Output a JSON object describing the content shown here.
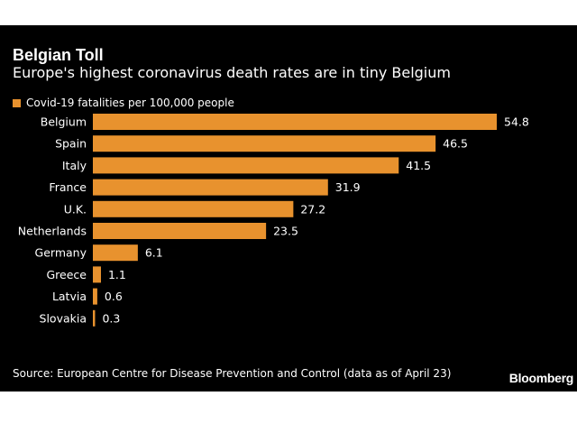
{
  "colors": {
    "background": "#000000",
    "bar": "#e8922e",
    "text": "#ffffff"
  },
  "source": "Source: European Centre for Disease Prevention and Control (data as of April 23)",
  "brand": "Bloomberg",
  "chart_data": {
    "type": "bar",
    "orientation": "horizontal",
    "title": "Belgian Toll",
    "subtitle": "Europe's highest coronavirus death rates are in tiny Belgium",
    "legend_placement": "top-left",
    "grid": false,
    "categories": [
      "Belgium",
      "Spain",
      "Italy",
      "France",
      "U.K.",
      "Netherlands",
      "Germany",
      "Greece",
      "Latvia",
      "Slovakia"
    ],
    "series": [
      {
        "name": "Covid-19 fatalities per 100,000 people",
        "values": [
          54.8,
          46.5,
          41.5,
          31.9,
          27.2,
          23.5,
          6.1,
          1.1,
          0.6,
          0.3
        ]
      }
    ],
    "data_labels": [
      "54.8",
      "46.5",
      "41.5",
      "31.9",
      "27.2",
      "23.5",
      "6.1",
      "1.1",
      "0.6",
      "0.3"
    ],
    "xlim": [
      0,
      54.8
    ]
  }
}
